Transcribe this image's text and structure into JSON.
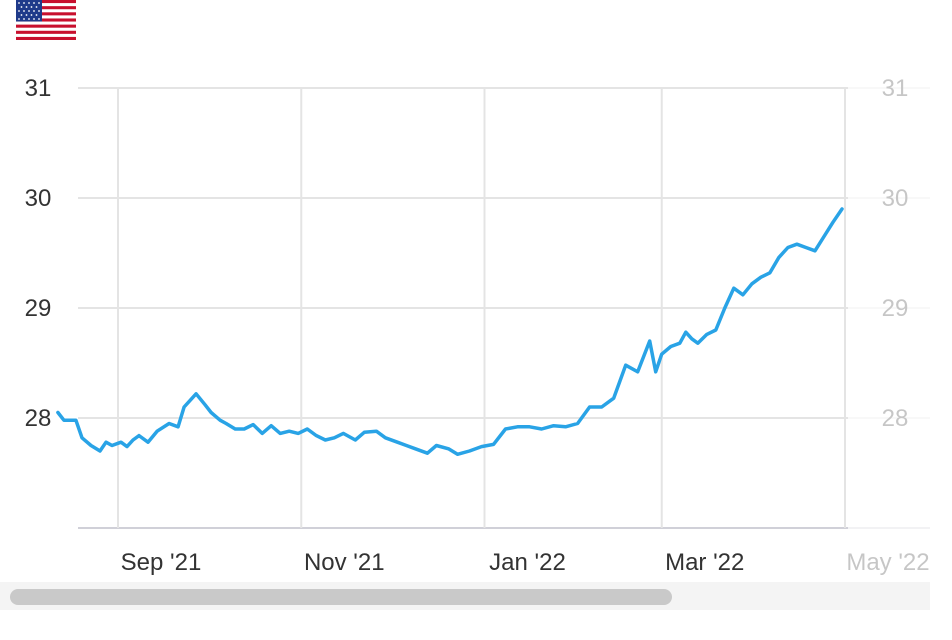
{
  "flag": {
    "icon": "us-flag-icon"
  },
  "chart_data": {
    "type": "line",
    "title": "",
    "xlabel": "",
    "ylabel": "",
    "ylim": [
      27,
      31
    ],
    "yticks_left": [
      "31",
      "30",
      "29",
      "28"
    ],
    "yticks_right": [
      "31",
      "30",
      "29",
      "28"
    ],
    "xticks": [
      "Sep '21",
      "Nov '21",
      "Jan '22",
      "Mar '22",
      "May '22"
    ],
    "xtick_dates": [
      "2021-09-01",
      "2021-11-01",
      "2022-01-01",
      "2022-03-01",
      "2022-05-01"
    ],
    "grid": true,
    "line_color": "#29a3e6",
    "series": [
      {
        "x": [
          "2021-08-12",
          "2021-08-14",
          "2021-08-18",
          "2021-08-20",
          "2021-08-23",
          "2021-08-26",
          "2021-08-28",
          "2021-08-30",
          "2021-09-02",
          "2021-09-04",
          "2021-09-06",
          "2021-09-08",
          "2021-09-11",
          "2021-09-14",
          "2021-09-18",
          "2021-09-21",
          "2021-09-23",
          "2021-09-27",
          "2021-09-30",
          "2021-10-02",
          "2021-10-05",
          "2021-10-07",
          "2021-10-10",
          "2021-10-13",
          "2021-10-16",
          "2021-10-19",
          "2021-10-22",
          "2021-10-25",
          "2021-10-28",
          "2021-10-31",
          "2021-11-03",
          "2021-11-06",
          "2021-11-09",
          "2021-11-12",
          "2021-11-15",
          "2021-11-19",
          "2021-11-22",
          "2021-11-26",
          "2021-11-29",
          "2021-12-03",
          "2021-12-06",
          "2021-12-09",
          "2021-12-13",
          "2021-12-16",
          "2021-12-20",
          "2021-12-23",
          "2021-12-27",
          "2021-12-31",
          "2022-01-04",
          "2022-01-08",
          "2022-01-12",
          "2022-01-16",
          "2022-01-20",
          "2022-01-24",
          "2022-01-28",
          "2022-02-01",
          "2022-02-05",
          "2022-02-09",
          "2022-02-13",
          "2022-02-17",
          "2022-02-21",
          "2022-02-25",
          "2022-02-27",
          "2022-03-01",
          "2022-03-04",
          "2022-03-07",
          "2022-03-09",
          "2022-03-11",
          "2022-03-13",
          "2022-03-16",
          "2022-03-19",
          "2022-03-22",
          "2022-03-25",
          "2022-03-28",
          "2022-03-31",
          "2022-04-03",
          "2022-04-06",
          "2022-04-09",
          "2022-04-12",
          "2022-04-15",
          "2022-04-18",
          "2022-04-21",
          "2022-04-24",
          "2022-04-27",
          "2022-04-30"
        ],
        "y": [
          28.05,
          27.98,
          27.98,
          27.82,
          27.75,
          27.7,
          27.78,
          27.75,
          27.78,
          27.74,
          27.8,
          27.84,
          27.78,
          27.88,
          27.95,
          27.92,
          28.1,
          28.22,
          28.12,
          28.05,
          27.98,
          27.95,
          27.9,
          27.9,
          27.94,
          27.86,
          27.93,
          27.86,
          27.88,
          27.86,
          27.9,
          27.84,
          27.8,
          27.82,
          27.86,
          27.8,
          27.87,
          27.88,
          27.82,
          27.78,
          27.75,
          27.72,
          27.68,
          27.75,
          27.72,
          27.67,
          27.7,
          27.74,
          27.76,
          27.9,
          27.92,
          27.92,
          27.9,
          27.93,
          27.92,
          27.95,
          28.1,
          28.1,
          28.18,
          28.48,
          28.42,
          28.7,
          28.42,
          28.58,
          28.65,
          28.68,
          28.78,
          28.72,
          28.68,
          28.76,
          28.8,
          29.0,
          29.18,
          29.12,
          29.22,
          29.28,
          29.32,
          29.46,
          29.55,
          29.58,
          29.55,
          29.52,
          29.65,
          29.78,
          29.9
        ]
      }
    ]
  }
}
